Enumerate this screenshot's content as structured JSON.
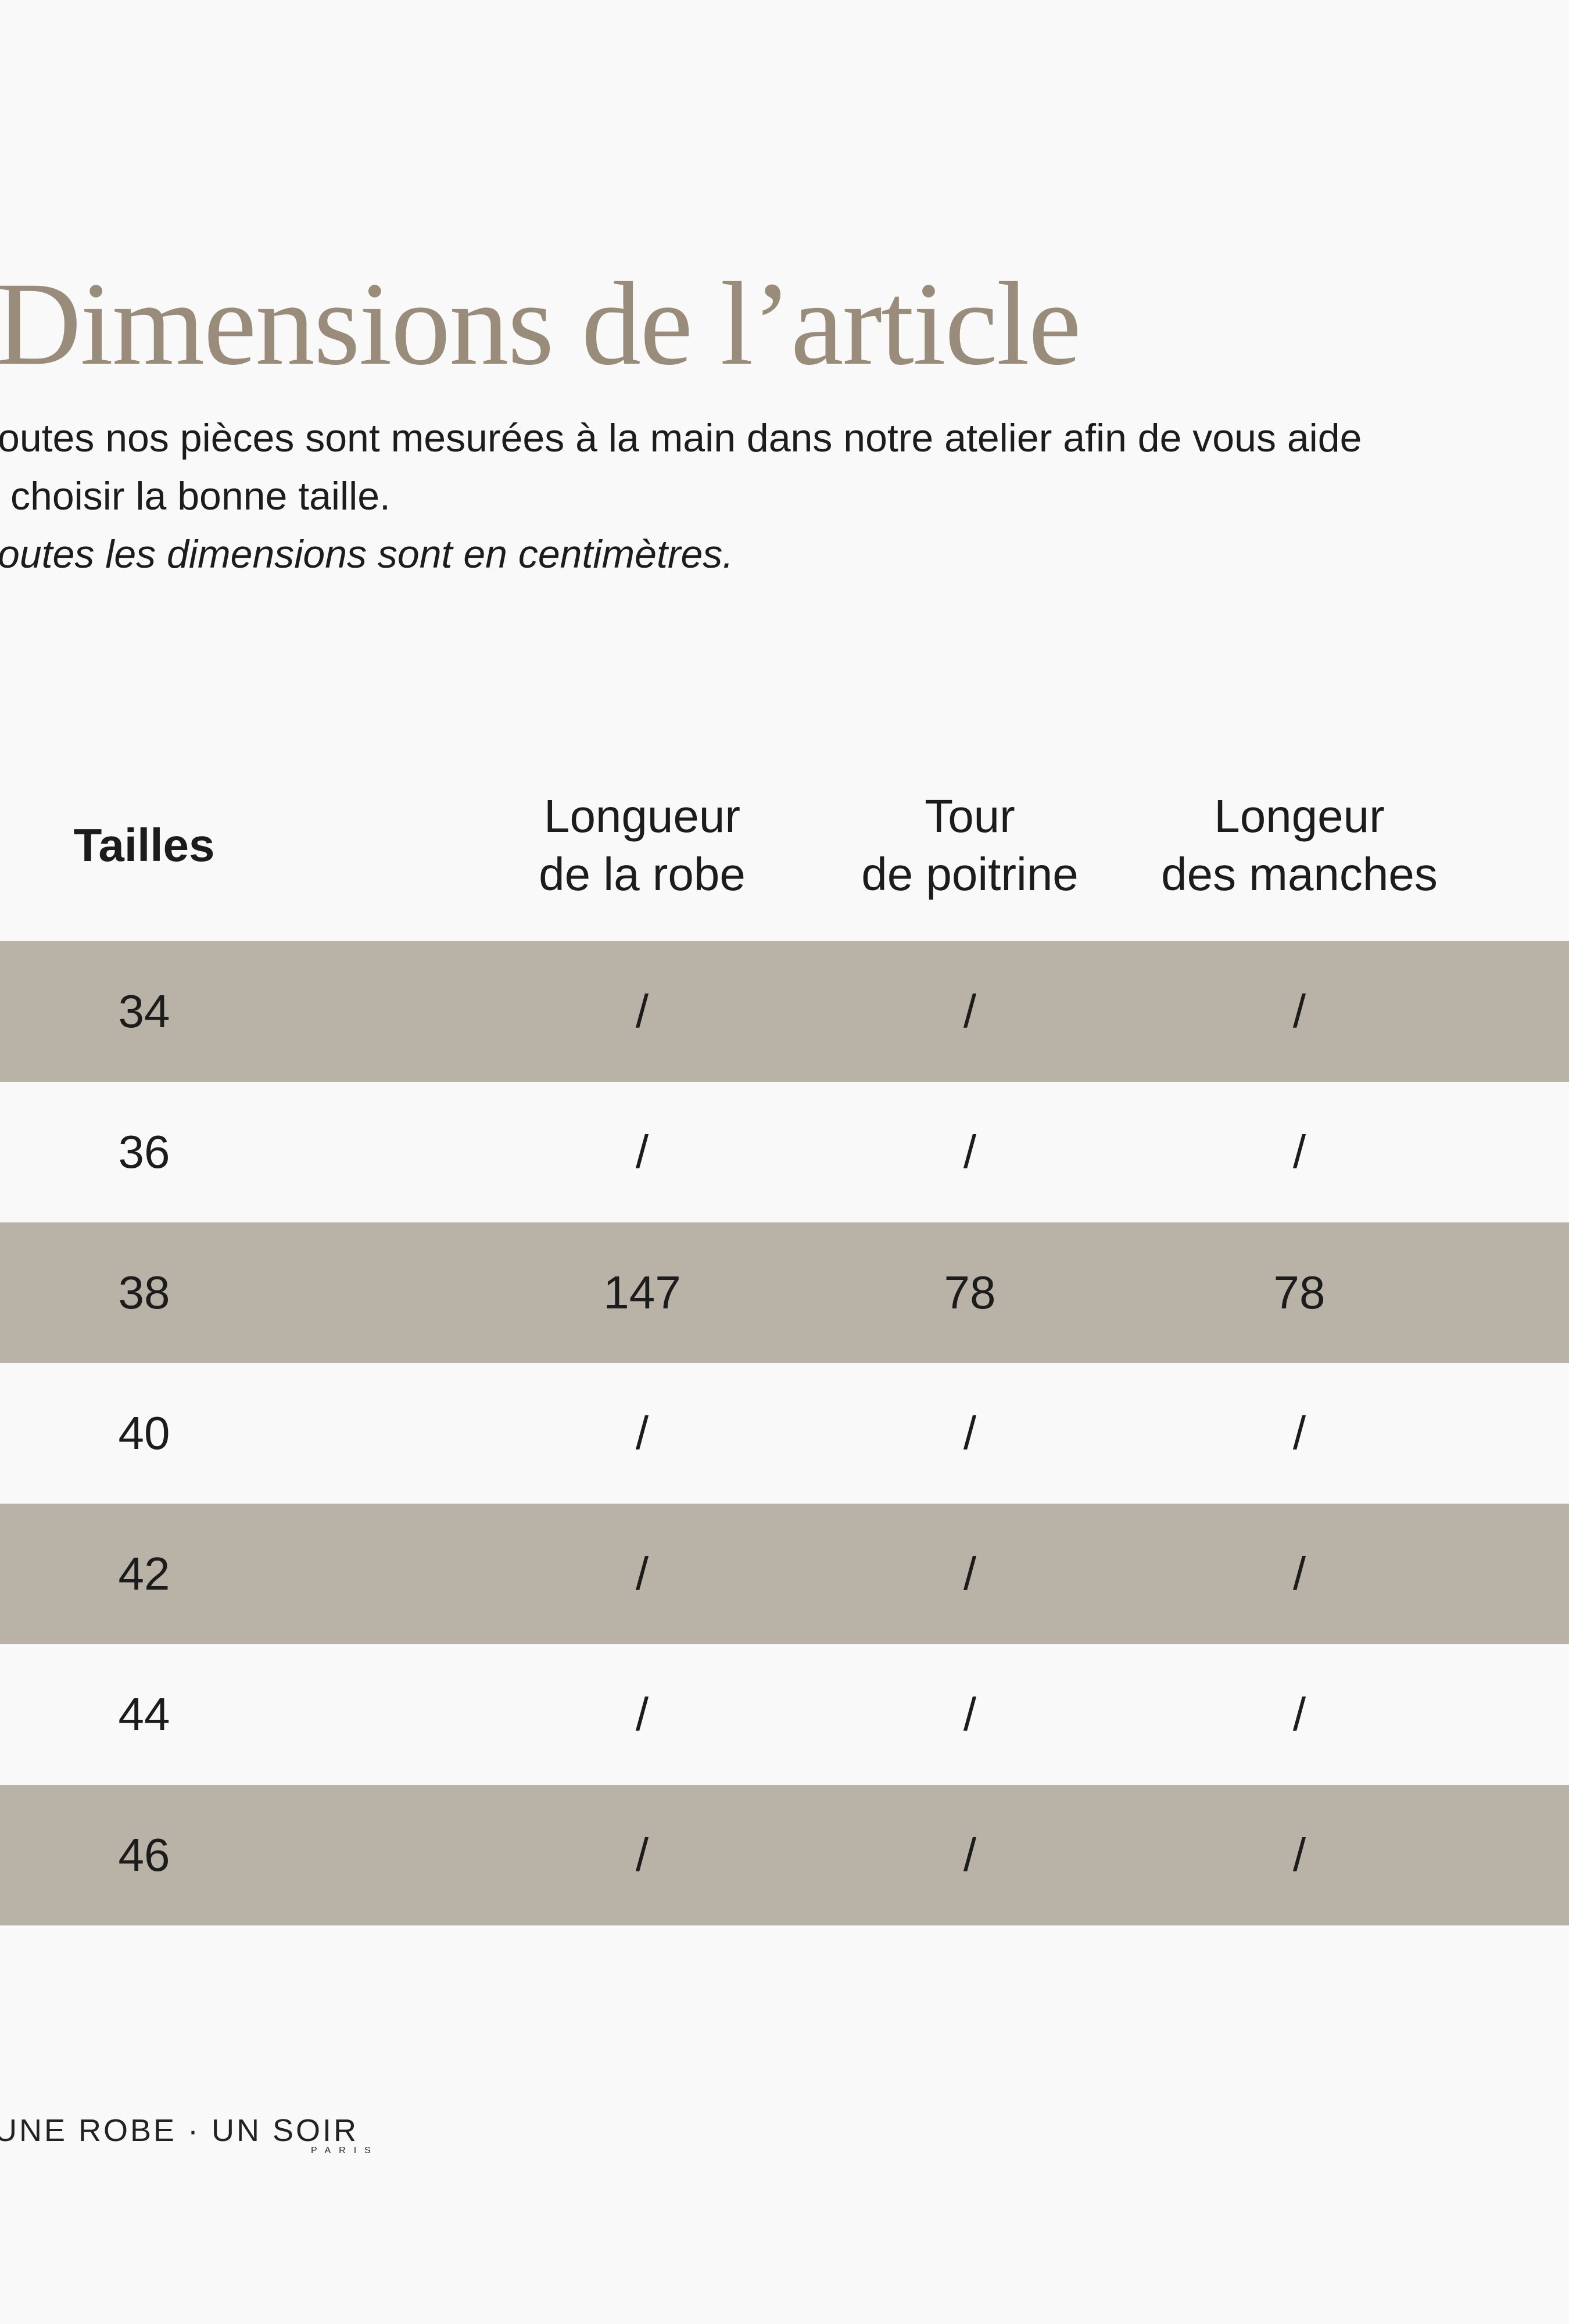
{
  "header": {
    "title": "Dimensions de l’article",
    "intro_lines": [
      "outes nos pièces sont mesurées à la main dans notre atelier afin de vous aide",
      "choisir la bonne taille."
    ],
    "note": "outes les dimensions sont en centimètres."
  },
  "table": {
    "columns": [
      [
        "Tailles"
      ],
      [
        "Longueur",
        "de la robe"
      ],
      [
        "Tour",
        "de poitrine"
      ],
      [
        "Longeur",
        "des manches"
      ]
    ],
    "rows": [
      [
        "34",
        "/",
        "/",
        "/"
      ],
      [
        "36",
        "/",
        "/",
        "/"
      ],
      [
        "38",
        "147",
        "78",
        "78"
      ],
      [
        "40",
        "/",
        "/",
        "/"
      ],
      [
        "42",
        "/",
        "/",
        "/"
      ],
      [
        "44",
        "/",
        "/",
        "/"
      ],
      [
        "46",
        "/",
        "/",
        "/"
      ]
    ]
  },
  "footer": {
    "logo": "UNE ROBE · UN SOIR",
    "logo_sub": "PARIS"
  }
}
